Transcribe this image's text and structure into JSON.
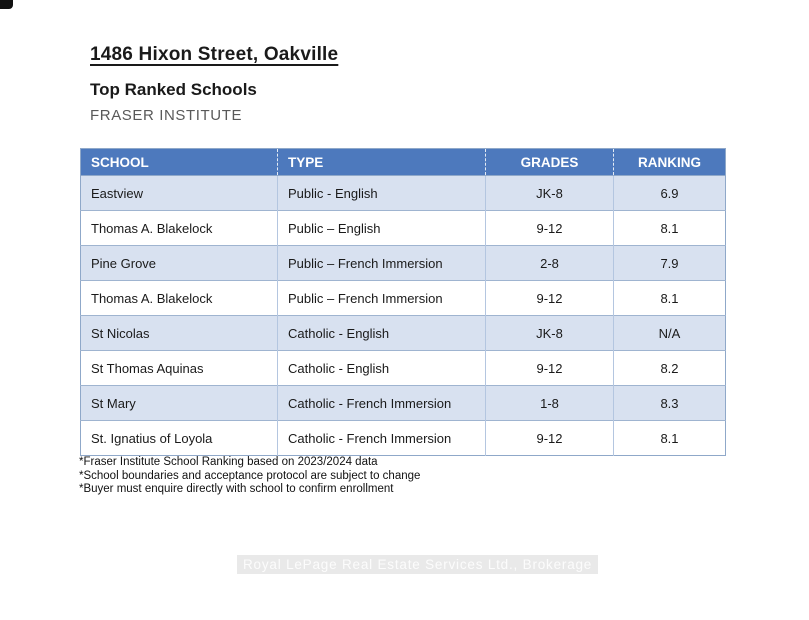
{
  "header": {
    "address": "1486 Hixon Street, Oakville",
    "subtitle": "Top Ranked Schools",
    "source": "FRASER INSTITUTE"
  },
  "table": {
    "columns": [
      "SCHOOL",
      "TYPE",
      "GRADES",
      "RANKING"
    ],
    "rows": [
      {
        "school": "Eastview",
        "type": "Public - English",
        "grades": "JK-8",
        "ranking": "6.9"
      },
      {
        "school": "Thomas A. Blakelock",
        "type": "Public – English",
        "grades": "9-12",
        "ranking": "8.1"
      },
      {
        "school": "Pine Grove",
        "type": "Public – French Immersion",
        "grades": "2-8",
        "ranking": "7.9"
      },
      {
        "school": "Thomas A. Blakelock",
        "type": "Public – French Immersion",
        "grades": "9-12",
        "ranking": "8.1"
      },
      {
        "school": "St Nicolas",
        "type": "Catholic - English",
        "grades": "JK-8",
        "ranking": "N/A"
      },
      {
        "school": "St Thomas Aquinas",
        "type": "Catholic - English",
        "grades": "9-12",
        "ranking": "8.2"
      },
      {
        "school": "St Mary",
        "type": "Catholic - French Immersion",
        "grades": "1-8",
        "ranking": "8.3"
      },
      {
        "school": "St. Ignatius of Loyola",
        "type": "Catholic - French Immersion",
        "grades": "9-12",
        "ranking": "8.1"
      }
    ]
  },
  "footnotes": [
    "*Fraser Institute School Ranking based on 2023/2024 data",
    "*School boundaries and acceptance protocol are subject to change",
    "*Buyer must enquire directly with school to confirm enrollment"
  ],
  "watermark": {
    "text": "Royal LePage Real Estate Services Ltd., Brokerage"
  },
  "colors": {
    "header_bg": "#4D79BD",
    "header_text": "#FFFFFF",
    "band_row_bg": "#D8E1F0",
    "table_border": "#8FA8C9",
    "row_divider": "#9FB4D0",
    "column_divider": "#B4C6E0",
    "source_text": "#595959",
    "watermark_bg": "#E9E9E9",
    "watermark_text": "#FCFCFC"
  }
}
